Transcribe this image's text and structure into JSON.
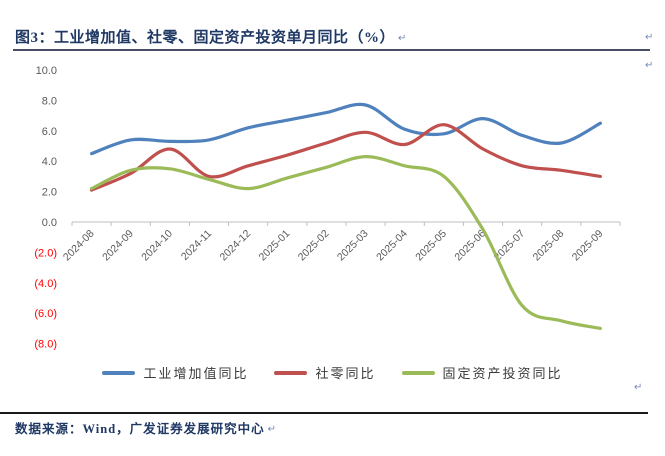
{
  "header": {
    "title_label": "图3：",
    "title": "工业增加值、社零、固定资产投资单月同比（%）",
    "return_mark": "↵"
  },
  "chart_data": {
    "type": "line",
    "title": "工业增加值、社零、固定资产投资单月同比（%）",
    "categories": [
      "2024-08",
      "2024-09",
      "2024-10",
      "2024-11",
      "2024-12",
      "2025-01",
      "2025-02",
      "2025-03",
      "2025-04",
      "2025-05",
      "2025-06",
      "2025-07",
      "2025-08",
      "2025-09"
    ],
    "series": [
      {
        "name": "工业增加值同比",
        "color": "#4f81bd",
        "values": [
          4.5,
          5.4,
          5.3,
          5.4,
          6.2,
          6.7,
          7.2,
          7.7,
          6.1,
          5.8,
          6.8,
          5.7,
          5.2,
          6.5
        ]
      },
      {
        "name": "社零同比",
        "color": "#c0504d",
        "values": [
          2.1,
          3.2,
          4.8,
          3.0,
          3.7,
          4.4,
          5.2,
          5.9,
          5.1,
          6.4,
          4.8,
          3.7,
          3.4,
          3.0
        ]
      },
      {
        "name": "固定资产投资同比",
        "color": "#9bbb59",
        "values": [
          2.2,
          3.4,
          3.5,
          2.8,
          2.2,
          2.9,
          3.6,
          4.3,
          3.7,
          3.0,
          -0.5,
          -5.5,
          -6.5,
          -7.0
        ]
      }
    ],
    "ylim": [
      -8,
      10
    ],
    "y_tick_step": 2,
    "y_tick_labels": [
      "10.0",
      "8.0",
      "6.0",
      "4.0",
      "2.0",
      "0.0",
      "(2.0)",
      "(4.0)",
      "(6.0)",
      "(8.0)"
    ],
    "y_tick_values": [
      10,
      8,
      6,
      4,
      2,
      0,
      -2,
      -4,
      -6,
      -8
    ],
    "axis_label_color": "#595959",
    "negative_label_color": "#ff0000",
    "axis_line_color": "#bfbfbf",
    "grid": false,
    "smooth": true,
    "legend_position": "bottom",
    "x_label_rotation": -45
  },
  "legend": {
    "items": [
      {
        "label": "工业增加值同比",
        "color": "#4f81bd"
      },
      {
        "label": "社零同比",
        "color": "#c0504d"
      },
      {
        "label": "固定资产投资同比",
        "color": "#9bbb59"
      }
    ]
  },
  "footer": {
    "source": "数据来源：Wind，广发证券发展研究中心",
    "return_mark": "↵"
  },
  "marks": {
    "return_mark": "↵"
  }
}
